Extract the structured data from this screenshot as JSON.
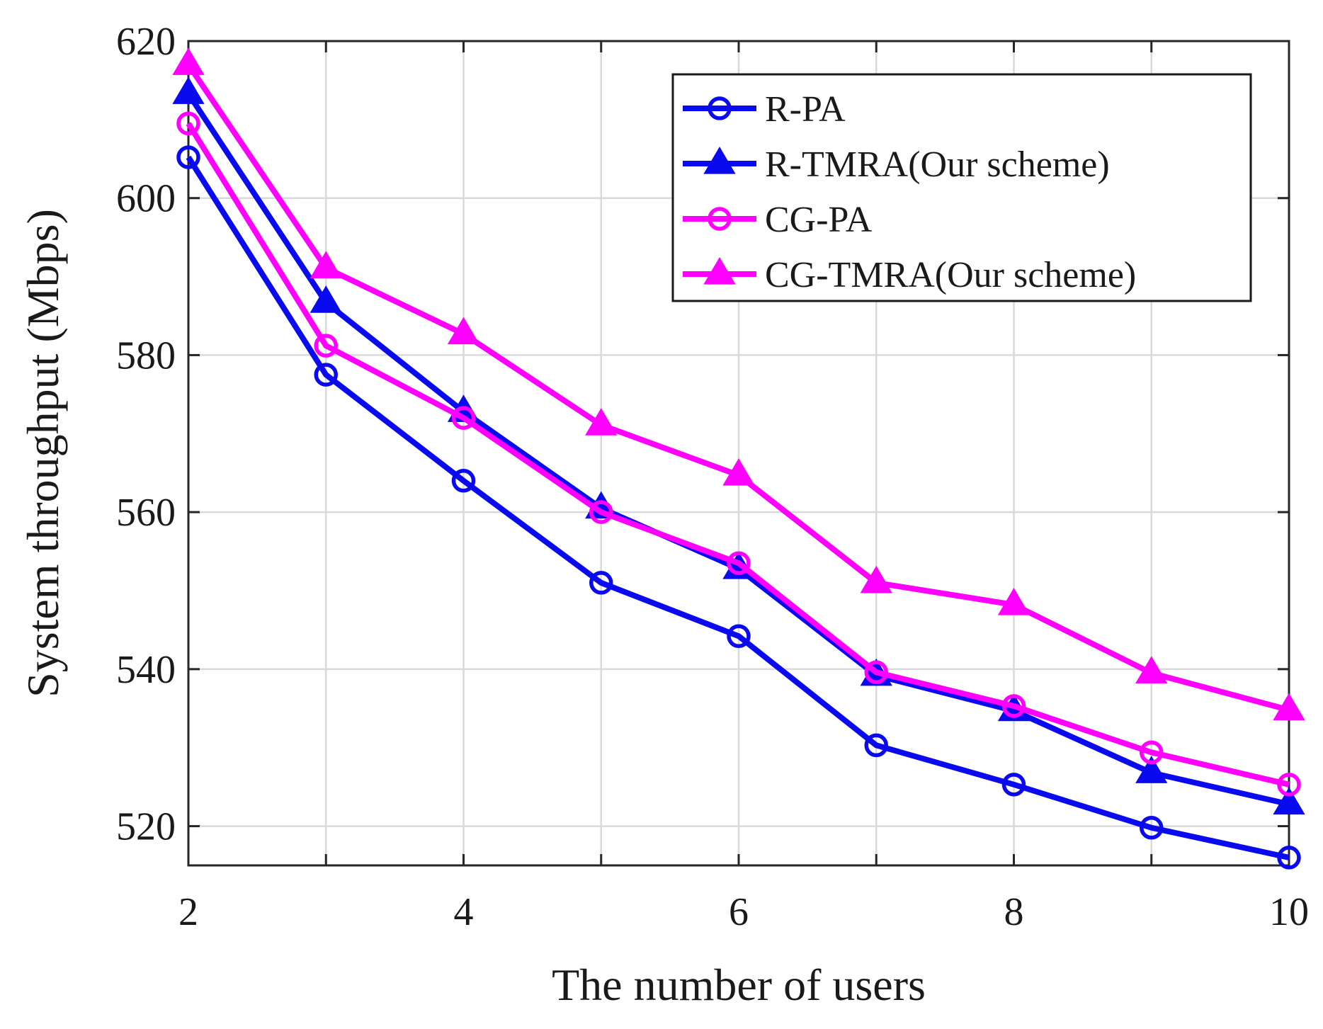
{
  "chart_data": {
    "type": "line",
    "title": "",
    "xlabel": "The number of users",
    "ylabel": "System throughput (Mbps)",
    "x": [
      2,
      3,
      4,
      5,
      6,
      7,
      8,
      9,
      10
    ],
    "xlim": [
      2,
      10
    ],
    "ylim": [
      515,
      620
    ],
    "xticks": [
      2,
      4,
      6,
      8,
      10
    ],
    "yticks": [
      520,
      540,
      560,
      580,
      600,
      620
    ],
    "grid": true,
    "legend_position": "top-right",
    "series": [
      {
        "name": "R-PA",
        "color": "#0a0aee",
        "marker": "circle",
        "values": [
          605.2,
          577.5,
          564.0,
          551.0,
          544.2,
          530.3,
          525.3,
          519.8,
          516.0
        ]
      },
      {
        "name": "R-TMRA(Our scheme)",
        "color": "#0a0aee",
        "marker": "triangle",
        "values": [
          613.3,
          586.7,
          572.8,
          560.5,
          552.8,
          539.2,
          534.7,
          526.8,
          522.8
        ]
      },
      {
        "name": "CG-PA",
        "color": "#ff00ff",
        "marker": "circle",
        "values": [
          609.5,
          581.2,
          572.0,
          560.0,
          553.5,
          539.6,
          535.3,
          529.4,
          525.3
        ]
      },
      {
        "name": "CG-TMRA(Our scheme)",
        "color": "#ff00ff",
        "marker": "triangle",
        "values": [
          617.0,
          591.1,
          582.7,
          571.1,
          564.7,
          551.0,
          548.2,
          539.5,
          534.8
        ]
      }
    ]
  }
}
